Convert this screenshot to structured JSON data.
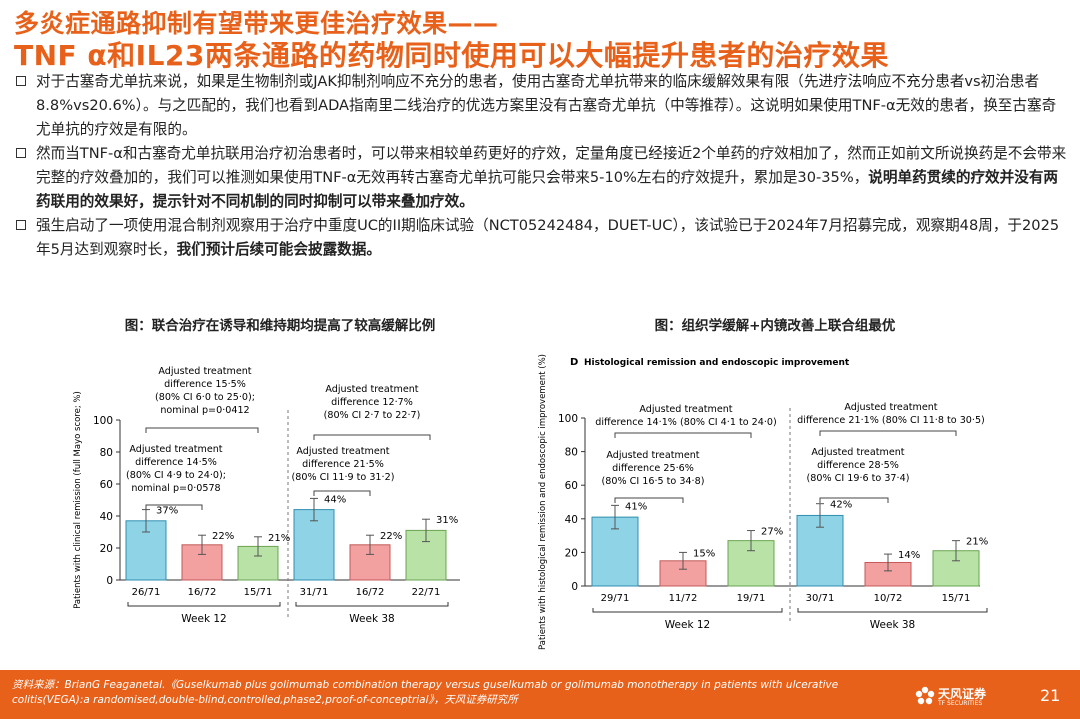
{
  "title": {
    "line1": "多炎症通路抑制有望带来更佳治疗效果——",
    "line2": "TNF α和IL23两条通路的药物同时使用可以大幅提升患者的治疗效果"
  },
  "bullets": [
    {
      "text": "对于古塞奇尤单抗来说，如果是生物制剂或JAK抑制剂响应不充分的患者，使用古塞奇尤单抗带来的临床缓解效果有限（先进疗法响应不充分患者vs初治患者8.8%vs20.6%）。与之匹配的，我们也看到ADA指南里二线治疗的优选方案里没有古塞奇尤单抗（中等推荐）。这说明如果使用TNF-α无效的患者，换至古塞奇尤单抗的疗效是有限的。",
      "bold": ""
    },
    {
      "text": "然而当TNF-α和古塞奇尤单抗联用治疗初治患者时，可以带来相较单药更好的疗效，定量角度已经接近2个单药的疗效相加了，然而正如前文所说换药是不会带来完整的疗效叠加的，我们可以推测如果使用TNF-α无效再转古塞奇尤单抗可能只会带来5-10%左右的疗效提升，累加是30-35%，",
      "bold": "说明单药贯续的疗效并没有两药联用的效果好，提示针对不同机制的同时抑制可以带来叠加疗效。"
    },
    {
      "text": "强生启动了一项使用混合制剂观察用于治疗中重度UC的II期临床试验（NCT05242484，DUET-UC），该试验已于2024年7月招募完成，观察期48周，于2025年5月达到观察时长，",
      "bold": "我们预计后续可能会披露数据。"
    }
  ],
  "captions": {
    "left": "图：联合治疗在诱导和维持期均提高了较高缓解比例",
    "right": "图：组织学缓解+内镜改善上联合组最优"
  },
  "colors": {
    "combo": "#8fd3e6",
    "guselkumab": "#f2a0a0",
    "golimumab": "#b9e2a6",
    "accent": "#e8611a"
  },
  "chart_data": [
    {
      "type": "bar",
      "ylabel": "Patients with clinical remission (full Mayo score; %)",
      "ylim": [
        0,
        100
      ],
      "yticks": [
        "0",
        "20",
        "40",
        "60",
        "80",
        "100"
      ],
      "groups": [
        {
          "name": "Week 12",
          "bars": [
            {
              "value": 37,
              "label": "37%",
              "n": "26/71",
              "err": [
                30,
                44
              ]
            },
            {
              "value": 22,
              "label": "22%",
              "n": "16/72",
              "err": [
                16,
                28
              ]
            },
            {
              "value": 21,
              "label": "21%",
              "n": "15/71",
              "err": [
                15,
                27
              ]
            }
          ]
        },
        {
          "name": "Week 38",
          "bars": [
            {
              "value": 44,
              "label": "44%",
              "n": "31/71",
              "err": [
                37,
                51
              ]
            },
            {
              "value": 22,
              "label": "22%",
              "n": "16/72",
              "err": [
                16,
                28
              ]
            },
            {
              "value": 31,
              "label": "31%",
              "n": "22/71",
              "err": [
                24,
                38
              ]
            }
          ]
        }
      ],
      "annotations": [
        {
          "lines": [
            "Adjusted treatment",
            "difference 15·5%",
            "(80% CI 6·0 to 25·0);",
            "nominal p=0·0412"
          ]
        },
        {
          "lines": [
            "Adjusted treatment",
            "difference 14·5%",
            "(80% CI 4·9 to 24·0);",
            "nominal p=0·0578"
          ]
        },
        {
          "lines": [
            "Adjusted treatment",
            "difference 12·7%",
            "(80% CI 2·7 to 22·7)"
          ]
        },
        {
          "lines": [
            "Adjusted treatment",
            "difference 21·5%",
            "(80% CI 11·9 to 31·2)"
          ]
        }
      ]
    },
    {
      "type": "bar",
      "panel_letter": "D",
      "title": "Histological remission and endoscopic improvement",
      "ylabel": "Patients with histological remission and endoscopic improvement (%)",
      "ylim": [
        0,
        100
      ],
      "yticks": [
        "0",
        "20",
        "40",
        "60",
        "80",
        "100"
      ],
      "groups": [
        {
          "name": "Week 12",
          "bars": [
            {
              "value": 41,
              "label": "41%",
              "n": "29/71",
              "err": [
                34,
                48
              ]
            },
            {
              "value": 15,
              "label": "15%",
              "n": "11/72",
              "err": [
                10,
                20
              ]
            },
            {
              "value": 27,
              "label": "27%",
              "n": "19/71",
              "err": [
                21,
                33
              ]
            }
          ]
        },
        {
          "name": "Week 38",
          "bars": [
            {
              "value": 42,
              "label": "42%",
              "n": "30/71",
              "err": [
                35,
                49
              ]
            },
            {
              "value": 14,
              "label": "14%",
              "n": "10/72",
              "err": [
                9,
                19
              ]
            },
            {
              "value": 21,
              "label": "21%",
              "n": "15/71",
              "err": [
                15,
                27
              ]
            }
          ]
        }
      ],
      "annotations": [
        {
          "lines": [
            "Adjusted treatment",
            "difference 14·1% (80% CI 4·1 to 24·0)"
          ]
        },
        {
          "lines": [
            "Adjusted treatment",
            "difference 25·6%",
            "(80% CI 16·5 to 34·8)"
          ]
        },
        {
          "lines": [
            "Adjusted treatment",
            "difference 21·1% (80% CI 11·8 to 30·5)"
          ]
        },
        {
          "lines": [
            "Adjusted treatment",
            "difference 28·5%",
            "(80% CI 19·6 to 37·4)"
          ]
        }
      ]
    }
  ],
  "footer": {
    "source": "资料来源：BrianG Feaganetal.《Guselkumab plus golimumab combination therapy versus guselkumab or golimumab monotherapy in patients with ulcerative colitis(VEGA):a randomised,double-blind,controlled,phase2,proof-of-conceptrial》，天风证券研究所",
    "logo_text": "天风证券",
    "logo_sub": "TF SECURITIES",
    "page": "21"
  }
}
